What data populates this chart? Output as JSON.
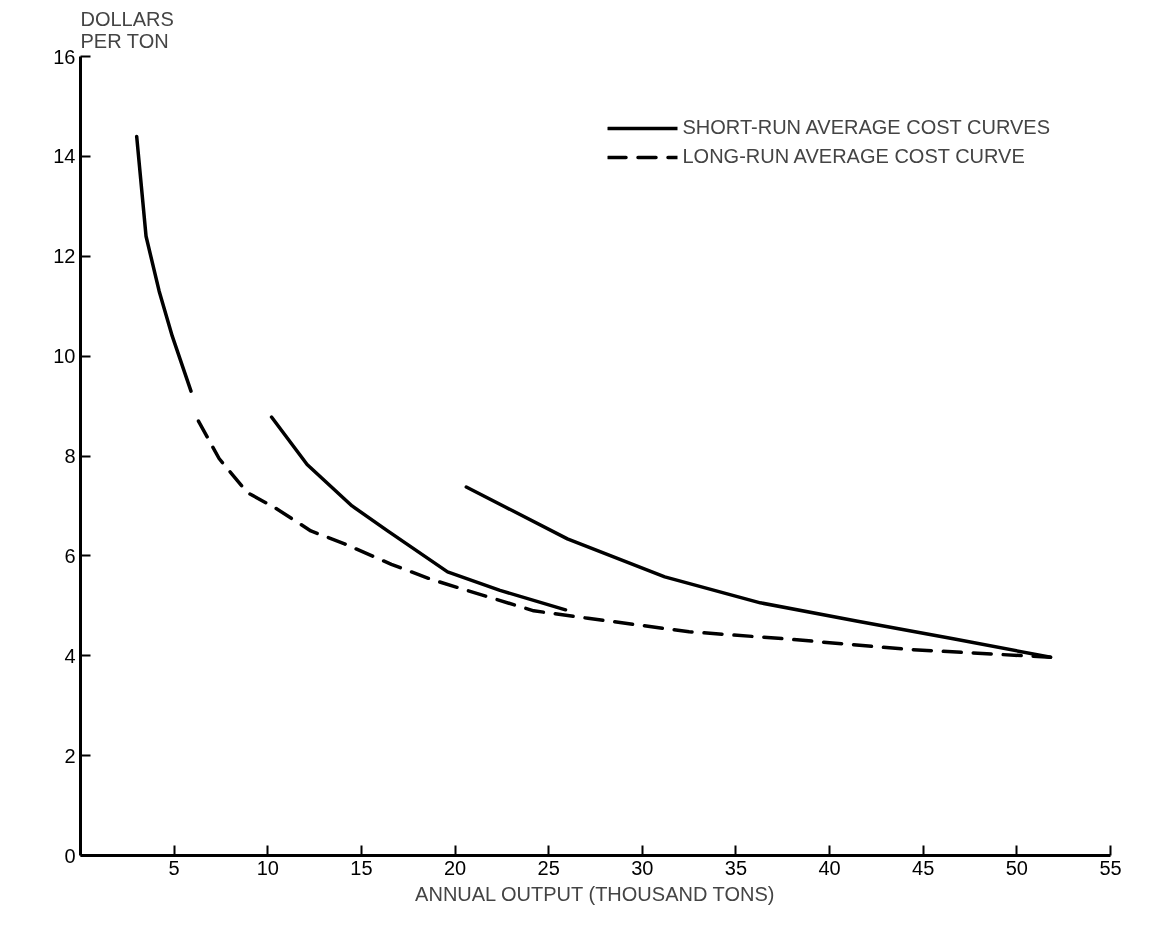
{
  "chart_data": {
    "type": "line",
    "xlabel": "ANNUAL OUTPUT (THOUSAND TONS)",
    "ylabel": "DOLLARS\nPER TON",
    "xlim": [
      0,
      55
    ],
    "xticks": [
      5,
      10,
      15,
      20,
      25,
      30,
      35,
      40,
      45,
      50,
      55
    ],
    "ylim": [
      0,
      16
    ],
    "yticks": [
      0,
      2,
      4,
      6,
      8,
      10,
      12,
      14,
      16
    ],
    "grid": false,
    "legend": "top right",
    "marker": "none",
    "series": [
      {
        "name": "SHORT-RUN AVERAGE COST CURVES",
        "color": "#000000",
        "line_style": "solid",
        "x": [
          3.0,
          3.5,
          4.2,
          4.9,
          5.9
        ],
        "values": [
          14.4,
          12.4,
          11.3,
          10.4,
          9.3
        ]
      },
      {
        "name": "LONG-RUN AVERAGE COST CURVE",
        "color": "#000000",
        "line_style": "dashed",
        "x": [
          6.3,
          7.4,
          8.9,
          10.4,
          12.3,
          14.1,
          16.6,
          18.8,
          24.2,
          27.1,
          32.5,
          37.6,
          44.1,
          51.8
        ],
        "values": [
          8.7,
          7.95,
          7.27,
          6.96,
          6.5,
          6.24,
          5.83,
          5.52,
          4.9,
          4.75,
          4.48,
          4.34,
          4.13,
          3.97
        ]
      },
      {
        "color": "#000000",
        "line_style": "solid",
        "x": [
          10.2,
          12.1,
          14.5,
          16.4,
          19.6,
          22.4,
          25.9
        ],
        "values": [
          8.78,
          7.83,
          7.0,
          6.5,
          5.68,
          5.31,
          4.92
        ]
      },
      {
        "color": "#000000",
        "line_style": "solid",
        "x": [
          20.6,
          26.0,
          31.2,
          36.3,
          41.5,
          46.6,
          51.8
        ],
        "values": [
          7.38,
          6.34,
          5.58,
          5.06,
          4.69,
          4.34,
          3.97
        ]
      }
    ]
  }
}
